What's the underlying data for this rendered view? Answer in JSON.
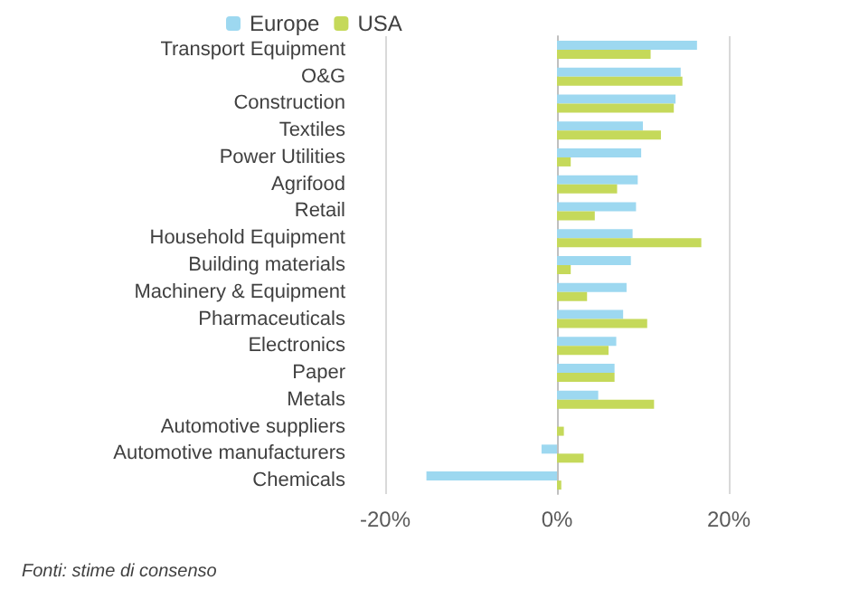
{
  "chart_data": {
    "type": "bar",
    "orientation": "horizontal",
    "categories": [
      "Transport Equipment",
      "O&G",
      "Construction",
      "Textiles",
      "Power Utilities",
      "Agrifood",
      "Retail",
      "Household Equipment",
      "Building materials",
      "Machinery & Equipment",
      "Pharmaceuticals",
      "Electronics",
      "Paper",
      "Metals",
      "Automotive suppliers",
      "Automotive manufacturers",
      "Chemicals"
    ],
    "series": [
      {
        "name": "Europe",
        "color": "#9dd8f0",
        "values": [
          16.3,
          14.4,
          13.8,
          10.0,
          9.8,
          9.4,
          9.2,
          8.8,
          8.6,
          8.1,
          7.7,
          6.9,
          6.7,
          4.8,
          0,
          -1.8,
          -15.2
        ]
      },
      {
        "name": "USA",
        "color": "#c5d95a",
        "values": [
          10.9,
          14.6,
          13.6,
          12.1,
          1.6,
          7.0,
          4.4,
          16.8,
          1.6,
          3.5,
          10.5,
          6.0,
          6.7,
          11.3,
          0.8,
          3.1,
          0.5
        ]
      }
    ],
    "xlim": [
      -20,
      20
    ],
    "xticks": [
      {
        "value": -20,
        "label": "-20%"
      },
      {
        "value": 0,
        "label": "0%"
      },
      {
        "value": 20,
        "label": "20%"
      }
    ],
    "grid": "x",
    "legend": "top",
    "annotations": [
      "Fonti: stime di consenso"
    ]
  }
}
